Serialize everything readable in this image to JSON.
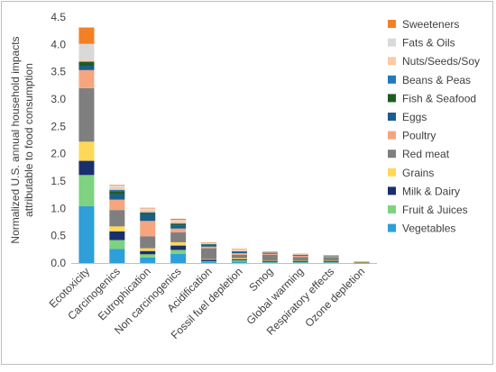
{
  "chart_data": {
    "type": "bar",
    "stacked": true,
    "ylabel": "Normalized U.S. annual household impacts attributable to food consumption",
    "xlabel": "",
    "ylim": [
      0,
      4.5
    ],
    "yticks": [
      "0.0",
      "0.5",
      "1.0",
      "1.5",
      "2.0",
      "2.5",
      "3.0",
      "3.5",
      "4.0",
      "4.5"
    ],
    "grid": false,
    "legend_position": "right",
    "categories": [
      "Ecotoxicity",
      "Carcinogenics",
      "Eutrophication",
      "Non carcinogenics",
      "Acidification",
      "Fossil fuel depletion",
      "Smog",
      "Global warming",
      "Respiratory effects",
      "Ozone depletion"
    ],
    "series": [
      {
        "name": "Vegetables",
        "color": "#2e9fd9",
        "values": [
          1.04,
          0.26,
          0.1,
          0.17,
          0.02,
          0.03,
          0.01,
          0.01,
          0.01,
          0.002
        ]
      },
      {
        "name": "Fruit & Juices",
        "color": "#7fd27f",
        "values": [
          0.57,
          0.16,
          0.06,
          0.07,
          0.01,
          0.02,
          0.01,
          0.01,
          0.01,
          0.002
        ]
      },
      {
        "name": "Milk & Dairy",
        "color": "#1a2f6e",
        "values": [
          0.26,
          0.16,
          0.06,
          0.08,
          0.03,
          0.02,
          0.02,
          0.02,
          0.02,
          0.003
        ]
      },
      {
        "name": "Grains",
        "color": "#ffd857",
        "values": [
          0.35,
          0.09,
          0.05,
          0.06,
          0.01,
          0.02,
          0.01,
          0.01,
          0.01,
          0.003
        ]
      },
      {
        "name": "Red meat",
        "color": "#7f7f7f",
        "values": [
          0.98,
          0.3,
          0.22,
          0.18,
          0.2,
          0.06,
          0.1,
          0.06,
          0.05,
          0.006
        ]
      },
      {
        "name": "Poultry",
        "color": "#f7a57f",
        "values": [
          0.33,
          0.19,
          0.28,
          0.07,
          0.03,
          0.03,
          0.02,
          0.02,
          0.01,
          0.003
        ]
      },
      {
        "name": "Eggs",
        "color": "#1a5e8c",
        "values": [
          0.08,
          0.1,
          0.12,
          0.05,
          0.03,
          0.02,
          0.01,
          0.01,
          0.01,
          0.002
        ]
      },
      {
        "name": "Fish & Seafood",
        "color": "#1f5c1f",
        "values": [
          0.07,
          0.05,
          0.03,
          0.03,
          0.01,
          0.01,
          0.005,
          0.005,
          0.005,
          0.001
        ]
      },
      {
        "name": "Beans & Peas",
        "color": "#1f7ab8",
        "values": [
          0.01,
          0.03,
          0.01,
          0.02,
          0.005,
          0.005,
          0.005,
          0.005,
          0.003,
          0.001
        ]
      },
      {
        "name": "Nuts/Seeds/Soy",
        "color": "#ffc9a8",
        "values": [
          0.02,
          0.05,
          0.04,
          0.04,
          0.01,
          0.02,
          0.01,
          0.005,
          0.005,
          0.001
        ]
      },
      {
        "name": "Fats & Oils",
        "color": "#d9d9d9",
        "values": [
          0.3,
          0.03,
          0.03,
          0.02,
          0.02,
          0.02,
          0.01,
          0.01,
          0.01,
          0.002
        ]
      },
      {
        "name": "Sweeteners",
        "color": "#f48024",
        "values": [
          0.3,
          0.01,
          0.01,
          0.02,
          0.005,
          0.005,
          0.005,
          0.005,
          0.005,
          0.001
        ]
      }
    ],
    "legend_order": [
      "Sweeteners",
      "Fats & Oils",
      "Nuts/Seeds/Soy",
      "Beans & Peas",
      "Fish & Seafood",
      "Eggs",
      "Poultry",
      "Red meat",
      "Grains",
      "Milk & Dairy",
      "Fruit & Juices",
      "Vegetables"
    ]
  }
}
